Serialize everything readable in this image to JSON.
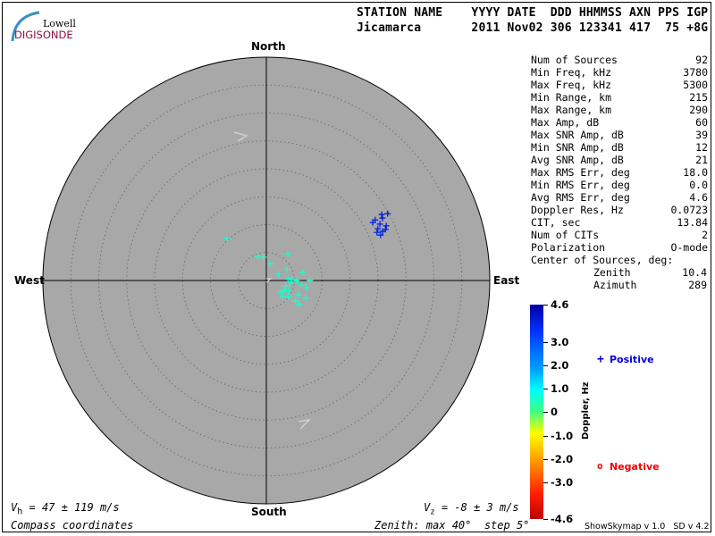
{
  "logo": {
    "top": "Lowell",
    "bottom": "DIGISONDE"
  },
  "header": {
    "labels": "STATION NAME    YYYY DATE  DDD HHMMSS AXN PPS IGP",
    "values": "Jicamarca       2011 Nov02 306 123341 417  75 +8G"
  },
  "stats": [
    {
      "label": "Num of Sources",
      "value": "92"
    },
    {
      "label": "Min Freq, kHz",
      "value": "3780"
    },
    {
      "label": "Max Freq, kHz",
      "value": "5300"
    },
    {
      "label": "Min Range, km",
      "value": "215"
    },
    {
      "label": "Max Range, km",
      "value": "290"
    },
    {
      "label": "Max Amp, dB",
      "value": "60"
    },
    {
      "label": "Max SNR Amp, dB",
      "value": "39"
    },
    {
      "label": "Min SNR Amp, dB",
      "value": "12"
    },
    {
      "label": "Avg SNR Amp, dB",
      "value": "21"
    },
    {
      "label": "Max RMS Err, deg",
      "value": "18.0"
    },
    {
      "label": "Min RMS Err, deg",
      "value": "0.0"
    },
    {
      "label": "Avg RMS Err, deg",
      "value": "4.6"
    },
    {
      "label": "Doppler Res, Hz",
      "value": "0.0723"
    },
    {
      "label": "CIT, sec",
      "value": "13.84"
    },
    {
      "label": "Num of CITs",
      "value": "2"
    },
    {
      "label": "Polarization",
      "value": "O-mode"
    }
  ],
  "center": {
    "title": "Center of Sources, deg:",
    "zenith_label": "Zenith",
    "zenith": "10.4",
    "azimuth_label": "Azimuth",
    "azimuth": "289"
  },
  "compass": {
    "north": "North",
    "south": "South",
    "east": "East",
    "west": "West"
  },
  "skymap": {
    "max_zenith_deg": 40,
    "step_deg": 5,
    "background": "#a8a8a8",
    "points_zenith_azimuth_doppler": [
      [
        23.8,
        60.2,
        4.0
      ],
      [
        24.8,
        61.1,
        4.0
      ],
      [
        22.3,
        60.9,
        3.8
      ],
      [
        23.6,
        61.7,
        4.1
      ],
      [
        21.7,
        61.4,
        3.8
      ],
      [
        22.7,
        63.6,
        3.9
      ],
      [
        23.6,
        65.5,
        3.9
      ],
      [
        22.0,
        65.1,
        3.7
      ],
      [
        22.6,
        67.1,
        3.9
      ],
      [
        22.0,
        68.3,
        3.8
      ],
      [
        23.2,
        66.8,
        4.0
      ],
      [
        21.6,
        66.5,
        3.7
      ],
      [
        10.3,
        317,
        0.6
      ],
      [
        4.6,
        340,
        0.6
      ],
      [
        4.2,
        353,
        0.5
      ],
      [
        3.1,
        12,
        0.5
      ],
      [
        6.1,
        39,
        0.6
      ],
      [
        4.2,
        62,
        0.5
      ],
      [
        2.5,
        63,
        0.6
      ],
      [
        6.7,
        78,
        0.5
      ],
      [
        7.8,
        90,
        0.6
      ],
      [
        3.9,
        85,
        0.6
      ],
      [
        4.6,
        88,
        0.5
      ],
      [
        5.4,
        90,
        0.6
      ],
      [
        4.3,
        96,
        0.5
      ],
      [
        3.6,
        105,
        0.6
      ],
      [
        6.3,
        97,
        0.5
      ],
      [
        7.3,
        100,
        0.6
      ],
      [
        3.7,
        119,
        0.5
      ],
      [
        3.3,
        129,
        0.6
      ],
      [
        4.4,
        114,
        0.6
      ],
      [
        4.1,
        135,
        0.5
      ],
      [
        4.9,
        126,
        0.6
      ],
      [
        6.3,
        114,
        0.5
      ],
      [
        7.7,
        114,
        0.6
      ],
      [
        6.4,
        125,
        0.5
      ],
      [
        7.3,
        126,
        0.6
      ]
    ]
  },
  "colorbar": {
    "title": "Doppler, Hz",
    "min": -4.6,
    "max": 4.6,
    "ticks": [
      "4.6",
      "3.0",
      "2.0",
      "1.0",
      "0",
      "-1.0",
      "-2.0",
      "-3.0",
      "-4.6"
    ]
  },
  "legend": {
    "positive": "Positive",
    "negative": "Negative",
    "positive_color": "#0000dd",
    "negative_color": "#ee0000"
  },
  "footer": {
    "vh_sym": "V",
    "vh_sub": "h",
    "vh_rest": " = 47 ± 119 m/s",
    "vz_sym": "V",
    "vz_sub": "z",
    "vz_rest": " = -8 ± 3 m/s",
    "coords": "Compass coordinates",
    "zenith": "Zenith: max 40°  step 5°",
    "version": "ShowSkymap v 1.0   SD v 4.2"
  }
}
